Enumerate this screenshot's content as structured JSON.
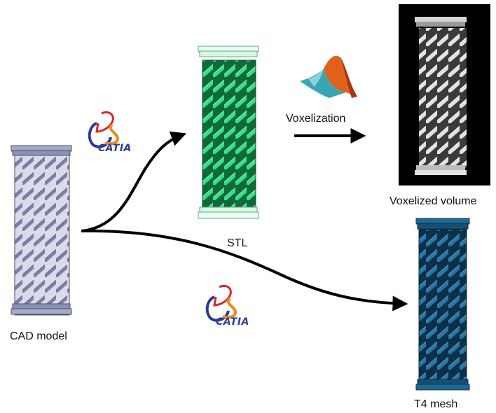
{
  "labels": {
    "cad_model": "CAD model",
    "stl": "STL",
    "voxelization": "Voxelization",
    "voxelized_volume": "Voxelized volume",
    "t4_mesh": "T4 mesh"
  },
  "logos": {
    "catia_top": "CATIA",
    "catia_bottom": "CATIA",
    "matlab_icon": "matlab-membrane-icon"
  },
  "colors": {
    "cad": "#9a9fbd",
    "stl": "#2fd07a",
    "voxel_bg": "#000000",
    "voxel": "#d8d8d8",
    "t4": "#1d5f86",
    "arrow": "#000000",
    "catia_blue": "#2a3a9c",
    "catia_red": "#d8262b",
    "catia_orange": "#f08a1c"
  }
}
